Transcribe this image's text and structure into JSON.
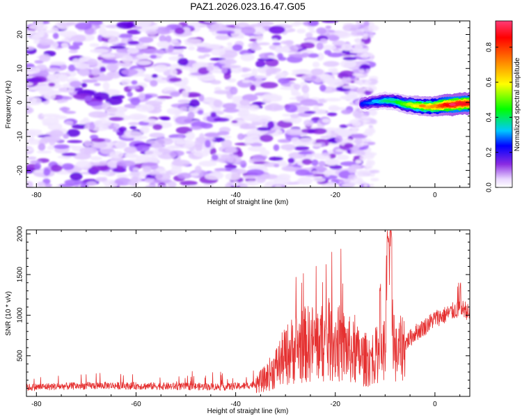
{
  "title": "PAZ1.2026.023.16.47.G05",
  "chart_data": [
    {
      "type": "heatmap",
      "xlabel": "Height of straight line (km)",
      "ylabel": "Frequency (Hz)",
      "xlim": [
        -82,
        7
      ],
      "ylim": [
        -25,
        24
      ],
      "xticks": [
        "-80",
        "-60",
        "-40",
        "-20",
        "0"
      ],
      "xtick_values": [
        -80,
        -60,
        -40,
        -20,
        0
      ],
      "yticks": [
        "-20",
        "-10",
        "0",
        "10",
        "20"
      ],
      "ytick_values": [
        -20,
        -10,
        0,
        10,
        20
      ],
      "colorbar": {
        "label": "Normalized spectral amplitude",
        "ticks": [
          "0.0",
          "0.2",
          "0.4",
          "0.6",
          "0.8"
        ],
        "tick_values": [
          0.0,
          0.2,
          0.4,
          0.6,
          0.8
        ],
        "range": [
          0,
          0.95
        ]
      },
      "noise_region": {
        "x_range": [
          -82,
          -13
        ],
        "y_range": [
          -25,
          24
        ],
        "amplitude_range": [
          0.02,
          0.12
        ]
      },
      "signal_ridge": [
        {
          "x": -14,
          "y": -0.3,
          "amp": 0.25
        },
        {
          "x": -12,
          "y": 0.2,
          "amp": 0.3
        },
        {
          "x": -10,
          "y": 0.5,
          "amp": 0.38
        },
        {
          "x": -8,
          "y": 0.3,
          "amp": 0.42
        },
        {
          "x": -6,
          "y": -0.5,
          "amp": 0.5
        },
        {
          "x": -4,
          "y": -0.9,
          "amp": 0.6
        },
        {
          "x": -2,
          "y": -1.2,
          "amp": 0.66
        },
        {
          "x": 0,
          "y": -1.2,
          "amp": 0.72
        },
        {
          "x": 2,
          "y": -0.8,
          "amp": 0.86
        },
        {
          "x": 4,
          "y": -0.6,
          "amp": 0.92
        },
        {
          "x": 6,
          "y": -0.3,
          "amp": 0.9
        }
      ]
    },
    {
      "type": "line",
      "xlabel": "Height of straight line (km)",
      "ylabel": "SNR (10 * v/v)",
      "xlim": [
        -82,
        7
      ],
      "ylim": [
        0,
        2050
      ],
      "xticks": [
        "-80",
        "-60",
        "-40",
        "-20",
        "0"
      ],
      "xtick_values": [
        -80,
        -60,
        -40,
        -20,
        0
      ],
      "yticks": [
        "500",
        "1000",
        "1500",
        "2000"
      ],
      "ytick_values": [
        500,
        1000,
        1500,
        2000
      ],
      "series_color": "#e53030",
      "x": [
        -82,
        -78,
        -74,
        -70,
        -66,
        -62,
        -58,
        -54,
        -50,
        -46,
        -42,
        -38,
        -36,
        -34,
        -32,
        -30,
        -28,
        -26,
        -24,
        -22,
        -20,
        -18,
        -16,
        -14,
        -12,
        -10,
        -9.3,
        -8,
        -6,
        -4,
        -2,
        0,
        2,
        4,
        6,
        7
      ],
      "values": [
        110,
        120,
        125,
        130,
        135,
        130,
        128,
        125,
        122,
        120,
        118,
        130,
        150,
        220,
        350,
        500,
        600,
        640,
        660,
        650,
        680,
        600,
        520,
        450,
        500,
        600,
        2030,
        500,
        650,
        780,
        860,
        960,
        1000,
        1060,
        1080,
        1000
      ]
    }
  ]
}
